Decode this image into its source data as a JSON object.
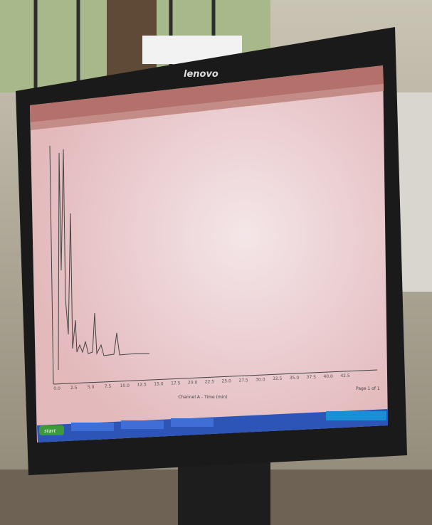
{
  "monitor": {
    "brand": "lenovo"
  },
  "screen": {
    "x_ticks": [
      "0.0",
      "2.5",
      "5.0",
      "7.5",
      "10.0",
      "12.5",
      "15.0",
      "17.5",
      "20.0",
      "22.5",
      "25.0",
      "27.5",
      "30.0",
      "32.5",
      "35.0",
      "37.5",
      "40.0",
      "42.5"
    ],
    "x_axis_label": "Channel A - Time (min)",
    "page": "Page 1 of 1",
    "taskbar": {
      "start": "start"
    }
  }
}
